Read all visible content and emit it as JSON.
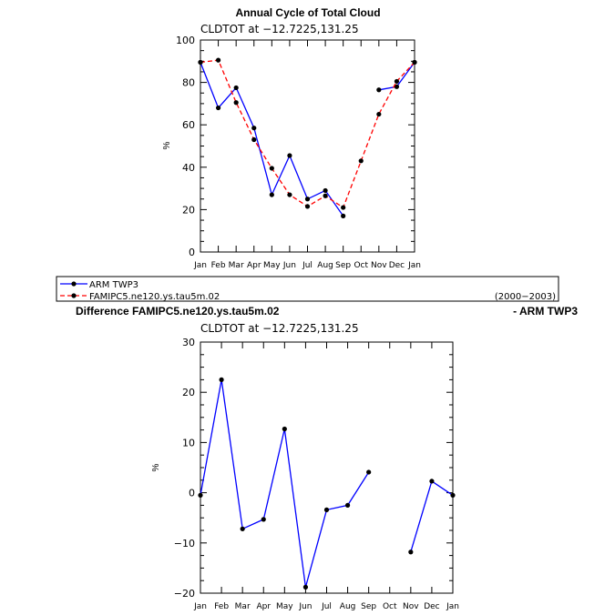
{
  "chart_data": [
    {
      "type": "line",
      "title": "Annual Cycle of Total Cloud",
      "subtitle": "CLDTOT at −12.7225,131.25",
      "xlabel": "",
      "ylabel": "%",
      "categories": [
        "Jan",
        "Feb",
        "Mar",
        "Apr",
        "May",
        "Jun",
        "Jul",
        "Aug",
        "Sep",
        "Oct",
        "Nov",
        "Dec",
        "Jan"
      ],
      "ylim": [
        0,
        100
      ],
      "yticks": [
        0,
        20,
        40,
        60,
        80,
        100
      ],
      "series": [
        {
          "name": "ARM TWP3",
          "color": "#0000ff",
          "dash": "solid",
          "values": [
            89.5,
            68,
            77.5,
            58.5,
            27,
            45.5,
            25,
            29,
            17,
            null,
            76.5,
            78,
            89.5
          ]
        },
        {
          "name": "FAMIPC5.ne120.ys.tau5m.02",
          "color": "#ff0000",
          "dash": "dashed",
          "values": [
            89.5,
            90.5,
            70.5,
            53,
            39.5,
            27,
            21.5,
            26.5,
            21,
            43,
            65,
            80.5,
            89.5
          ]
        }
      ],
      "legend": {
        "entries": [
          "ARM TWP3",
          "FAMIPC5.ne120.ys.tau5m.02"
        ],
        "period": "(2000−2003)"
      }
    },
    {
      "type": "line",
      "title_left": "Difference FAMIPC5.ne120.ys.tau5m.02",
      "title_right": "- ARM TWP3",
      "subtitle": "CLDTOT at −12.7225,131.25",
      "xlabel": "",
      "ylabel": "%",
      "categories": [
        "Jan",
        "Feb",
        "Mar",
        "Apr",
        "May",
        "Jun",
        "Jul",
        "Aug",
        "Sep",
        "Oct",
        "Nov",
        "Dec",
        "Jan"
      ],
      "ylim": [
        -20,
        30
      ],
      "yticks": [
        -20,
        -10,
        0,
        10,
        20,
        30
      ],
      "series": [
        {
          "name": "Difference",
          "color": "#0000ff",
          "dash": "solid",
          "values": [
            -0.5,
            22.5,
            -7.2,
            -5.3,
            12.7,
            -18.8,
            -3.4,
            -2.5,
            4.1,
            null,
            -11.8,
            2.3,
            -0.5
          ]
        }
      ]
    }
  ]
}
